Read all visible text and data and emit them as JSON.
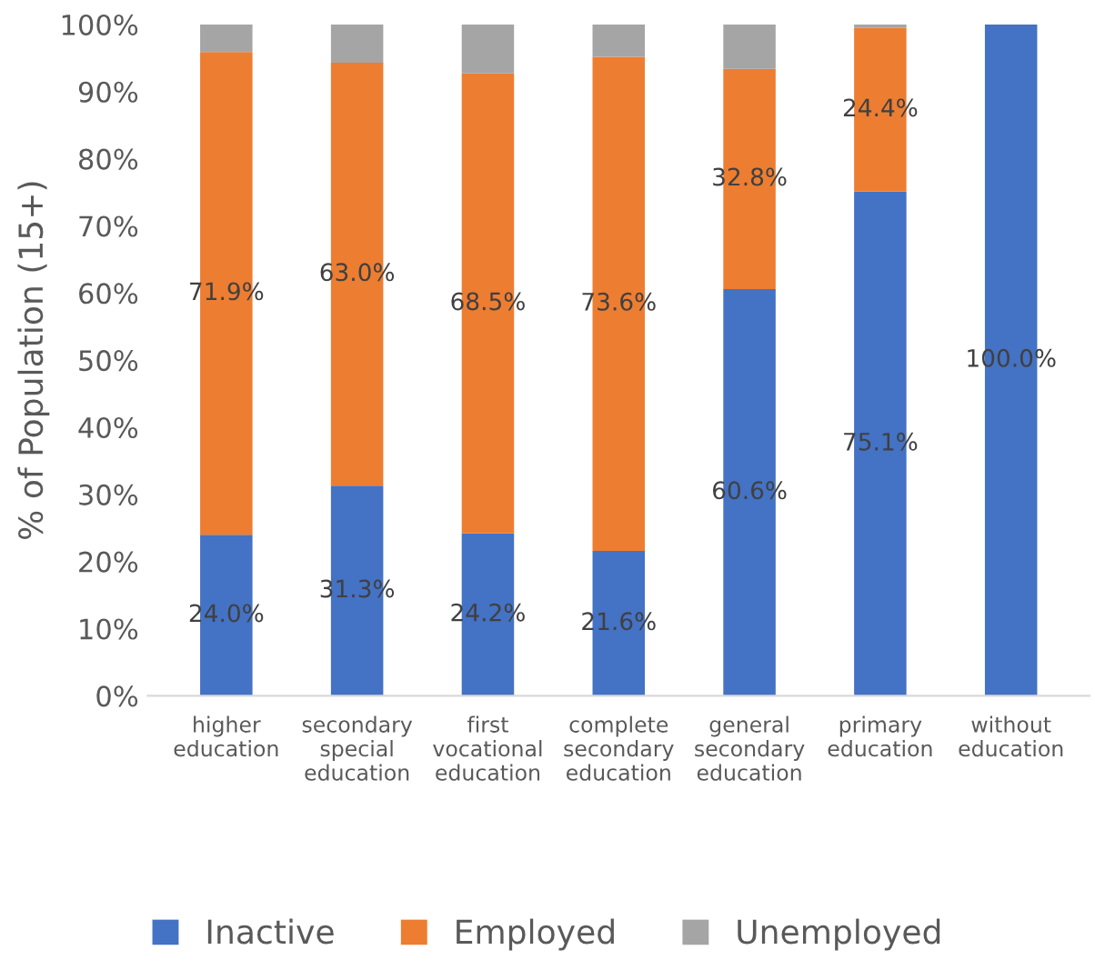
{
  "chart_data": {
    "type": "bar",
    "stacked": true,
    "ylabel": "% of Population (15+)",
    "categories": [
      "higher\neducation",
      "secondary\nspecial\neducation",
      "first\nvocational\neducation",
      "complete\nsecondary\neducation",
      "general\nsecondary\neducation",
      "primary\neducation",
      "without\neducation"
    ],
    "series": [
      {
        "name": "Inactive",
        "color": "#4472c4",
        "values": [
          24.0,
          31.3,
          24.2,
          21.6,
          60.6,
          75.1,
          100.0
        ],
        "value_labels": [
          "24.0%",
          "31.3%",
          "24.2%",
          "21.6%",
          "60.6%",
          "75.1%",
          "100.0%"
        ]
      },
      {
        "name": "Employed",
        "color": "#ed7d31",
        "values": [
          71.9,
          63.0,
          68.5,
          73.6,
          32.8,
          24.4,
          0
        ],
        "value_labels": [
          "71.9%",
          "63.0%",
          "68.5%",
          "73.6%",
          "32.8%",
          "24.4%",
          null
        ]
      },
      {
        "name": "Unemployed",
        "color": "#a5a5a5",
        "values": [
          4.1,
          5.7,
          7.3,
          4.8,
          6.6,
          0.5,
          0
        ],
        "value_labels": [
          null,
          null,
          null,
          null,
          null,
          null,
          null
        ]
      }
    ],
    "ylim": [
      0,
      100
    ],
    "yticks": [
      {
        "value": 0,
        "label": "0%"
      },
      {
        "value": 10,
        "label": "10%"
      },
      {
        "value": 20,
        "label": "20%"
      },
      {
        "value": 30,
        "label": "30%"
      },
      {
        "value": 40,
        "label": "40%"
      },
      {
        "value": 50,
        "label": "50%"
      },
      {
        "value": 60,
        "label": "60%"
      },
      {
        "value": 70,
        "label": "70%"
      },
      {
        "value": 80,
        "label": "80%"
      },
      {
        "value": 90,
        "label": "90%"
      },
      {
        "value": 100,
        "label": "100%"
      }
    ],
    "grid": false,
    "legend": "bottom"
  }
}
